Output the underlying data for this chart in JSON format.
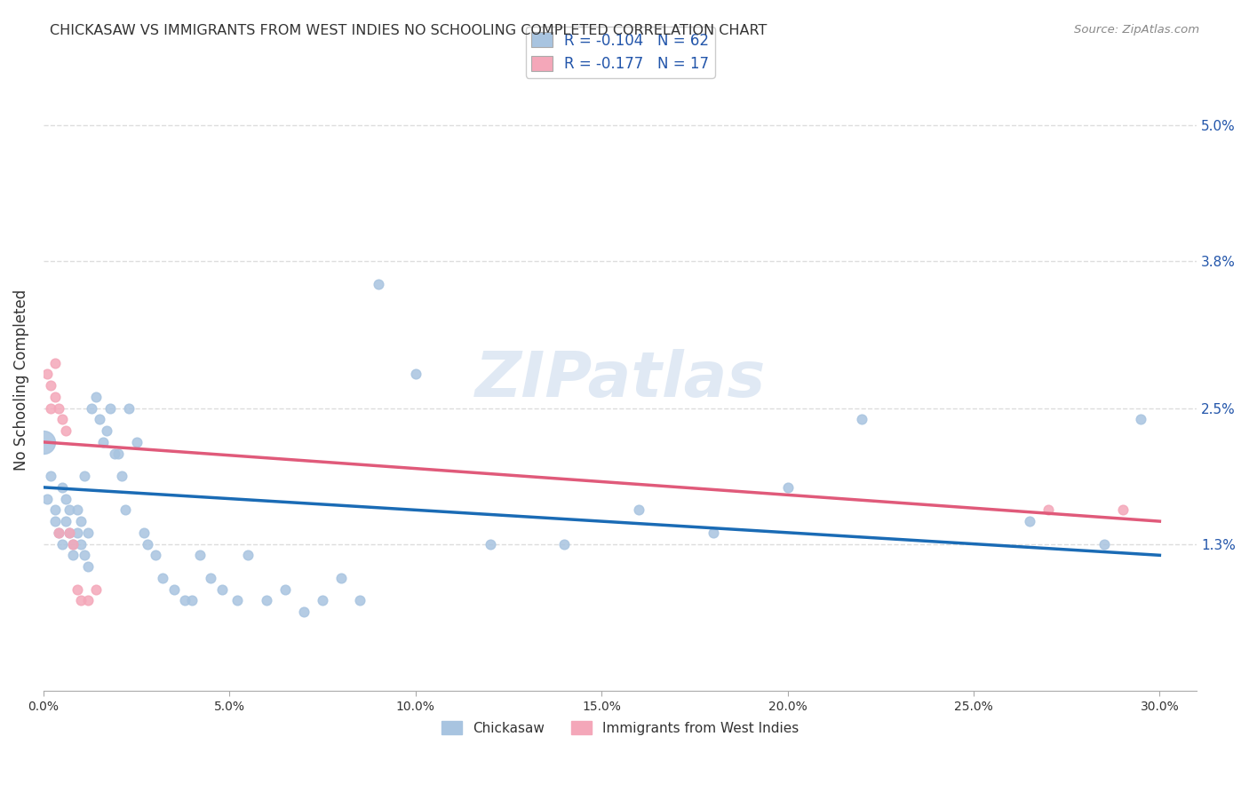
{
  "title": "CHICKASAW VS IMMIGRANTS FROM WEST INDIES NO SCHOOLING COMPLETED CORRELATION CHART",
  "source": "Source: ZipAtlas.com",
  "ylabel": "No Schooling Completed",
  "yticks": [
    "5.0%",
    "3.8%",
    "2.5%",
    "1.3%"
  ],
  "ytick_values": [
    0.05,
    0.038,
    0.025,
    0.013
  ],
  "xtick_values": [
    0.0,
    0.05,
    0.1,
    0.15,
    0.2,
    0.25,
    0.3
  ],
  "legend1_label": "R = -0.104   N = 62",
  "legend2_label": "R = -0.177   N = 17",
  "legend_bottom1": "Chickasaw",
  "legend_bottom2": "Immigrants from West Indies",
  "blue_color": "#a8c4e0",
  "pink_color": "#f4a7b9",
  "line_blue": "#1a6bb5",
  "line_pink": "#e05a7a",
  "text_color": "#2255aa",
  "title_color": "#333333",
  "grid_color": "#dddddd",
  "bg_color": "#ffffff",
  "watermark": "ZIPatlas",
  "chickasaw_x": [
    0.001,
    0.002,
    0.003,
    0.003,
    0.004,
    0.005,
    0.005,
    0.006,
    0.006,
    0.007,
    0.007,
    0.008,
    0.008,
    0.009,
    0.009,
    0.01,
    0.01,
    0.011,
    0.011,
    0.012,
    0.012,
    0.013,
    0.014,
    0.015,
    0.016,
    0.017,
    0.018,
    0.019,
    0.02,
    0.021,
    0.022,
    0.023,
    0.025,
    0.027,
    0.028,
    0.03,
    0.032,
    0.035,
    0.038,
    0.04,
    0.042,
    0.045,
    0.048,
    0.052,
    0.055,
    0.06,
    0.065,
    0.07,
    0.075,
    0.08,
    0.085,
    0.09,
    0.1,
    0.12,
    0.14,
    0.16,
    0.18,
    0.2,
    0.22,
    0.265,
    0.285,
    0.295
  ],
  "chickasaw_y": [
    0.017,
    0.019,
    0.015,
    0.016,
    0.014,
    0.018,
    0.013,
    0.015,
    0.017,
    0.014,
    0.016,
    0.013,
    0.012,
    0.016,
    0.014,
    0.013,
    0.015,
    0.019,
    0.012,
    0.014,
    0.011,
    0.025,
    0.026,
    0.024,
    0.022,
    0.023,
    0.025,
    0.021,
    0.021,
    0.019,
    0.016,
    0.025,
    0.022,
    0.014,
    0.013,
    0.012,
    0.01,
    0.009,
    0.008,
    0.008,
    0.012,
    0.01,
    0.009,
    0.008,
    0.012,
    0.008,
    0.009,
    0.007,
    0.008,
    0.01,
    0.008,
    0.036,
    0.028,
    0.013,
    0.013,
    0.016,
    0.014,
    0.018,
    0.024,
    0.015,
    0.013,
    0.024
  ],
  "large_blue_x": [
    0.0
  ],
  "large_blue_y": [
    0.022
  ],
  "westindies_x": [
    0.001,
    0.002,
    0.002,
    0.003,
    0.003,
    0.004,
    0.004,
    0.005,
    0.006,
    0.007,
    0.008,
    0.009,
    0.01,
    0.012,
    0.014,
    0.27,
    0.29
  ],
  "westindies_y": [
    0.028,
    0.027,
    0.025,
    0.029,
    0.026,
    0.025,
    0.014,
    0.024,
    0.023,
    0.014,
    0.013,
    0.009,
    0.008,
    0.008,
    0.009,
    0.016,
    0.016
  ],
  "blue_line_x": [
    0.0,
    0.3
  ],
  "blue_line_y": [
    0.018,
    0.012
  ],
  "pink_line_x": [
    0.0,
    0.3
  ],
  "pink_line_y": [
    0.022,
    0.015
  ],
  "ylim": [
    0.0,
    0.055
  ],
  "xlim": [
    0.0,
    0.31
  ]
}
